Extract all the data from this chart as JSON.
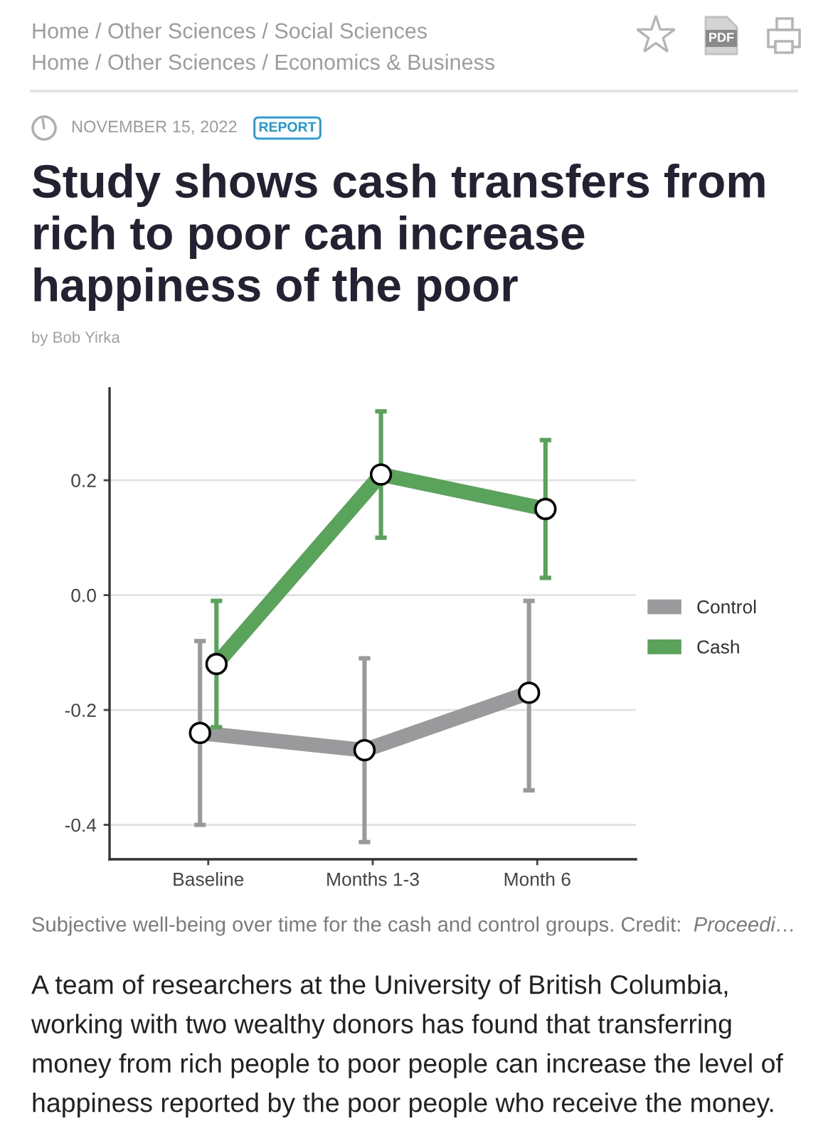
{
  "chart_data": {
    "type": "line",
    "title": "Study shows cash transfers from rich to poor can increase happiness of the poor",
    "categories": [
      "Baseline",
      "Months 1-3",
      "Month 6"
    ],
    "series": [
      {
        "name": "Control",
        "color": "#9a999b",
        "values": [
          -0.24,
          -0.27,
          -0.17
        ],
        "errors": [
          [
            -0.4,
            -0.08
          ],
          [
            -0.43,
            -0.11
          ],
          [
            -0.34,
            -0.01
          ]
        ]
      },
      {
        "name": "Cash",
        "color": "#5aa35a",
        "values": [
          -0.12,
          0.21,
          0.15
        ],
        "errors": [
          [
            -0.23,
            -0.01
          ],
          [
            0.1,
            0.32
          ],
          [
            0.03,
            0.27
          ]
        ]
      }
    ],
    "ylim": [
      -0.46,
      0.36
    ],
    "yticks": [
      {
        "value": -0.4,
        "label": "-0.4"
      },
      {
        "value": -0.2,
        "label": "-0.2"
      },
      {
        "value": 0,
        "label": "0.0"
      },
      {
        "value": 0.2,
        "label": "0.2"
      }
    ],
    "grid": "y",
    "legend": "right",
    "marker": "circle",
    "line_style": "solid",
    "annotations": [
      "Home / Other Sciences / Social Sciences",
      "Home / Other Sciences / Economics & Business",
      "NOVEMBER 15, 2022",
      "REPORT",
      "by Bob Yirka",
      "Subjective well-being over time for the cash and control groups. Credit:",
      "Proceedi…",
      "A team of researchers at the University of British Columbia, working with two wealthy donors has found that transferring money from rich people to poor people can increase the level of happiness reported by the poor people who receive the money.",
      "PDF"
    ]
  }
}
